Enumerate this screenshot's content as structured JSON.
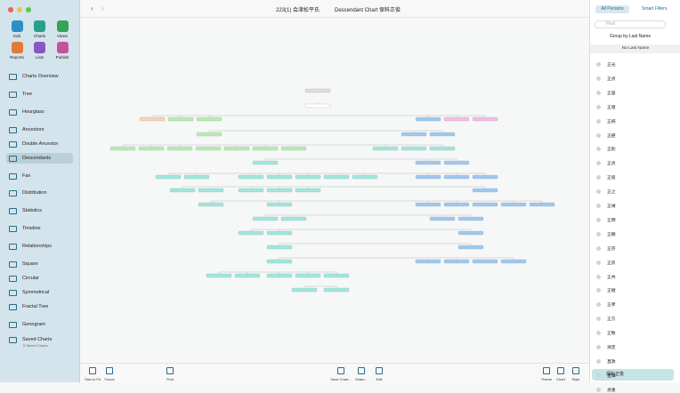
{
  "toolbar": [
    {
      "label": "Edit"
    },
    {
      "label": "Charts"
    },
    {
      "label": "Views"
    },
    {
      "label": "Reports"
    },
    {
      "label": "Lists"
    },
    {
      "label": "Publish"
    }
  ],
  "nav": [
    "Charts Overview",
    "Tree",
    "Hourglass",
    "Ancestors",
    "Double Ancestor",
    "Descendants",
    "Fan",
    "Distribution",
    "Statistics",
    "Timeline",
    "Relationships",
    "Square",
    "Circular",
    "Symmetrical",
    "Fractal Tree",
    "Genogram",
    "Saved Charts"
  ],
  "saved_count": "0 Saved Charts",
  "header": {
    "tree": "223(1) 会津松平氏",
    "chart": "Descendant Chart 保科正俊"
  },
  "right_panel": {
    "tabs": [
      "All Persons",
      "Smart Filters"
    ],
    "search": "Find",
    "group": "Group by Last Name",
    "section": "No Last Name",
    "persons": [
      "正光",
      "正貞",
      "正容",
      "正億",
      "正純",
      "正經",
      "正則",
      "正貞",
      "正俊",
      "正之",
      "正靖",
      "正明",
      "正頼",
      "正宗",
      "正房",
      "正共",
      "正継",
      "正孝",
      "正方",
      "正致",
      "清定",
      "直政",
      "直輝",
      "貞重"
    ],
    "selected": "保科正俊"
  },
  "bottom": [
    "Size to Fit",
    "Focus",
    "Find",
    "Save Chart...",
    "Share...",
    "Edit",
    "Theme",
    "Chart",
    "Style"
  ]
}
